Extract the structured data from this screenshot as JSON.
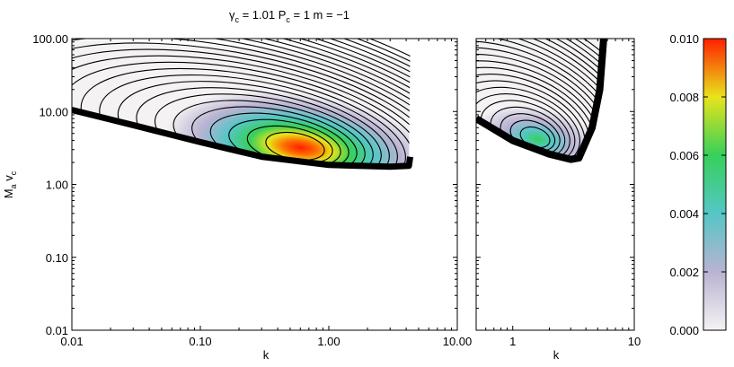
{
  "chart_data": [
    {
      "type": "heatmap",
      "title_parts": [
        {
          "sym": "γ",
          "sub": "c",
          "rest": " = 1.01"
        },
        {
          "sym": "P",
          "sub": "c",
          "rest": " = 1"
        },
        {
          "sym": "m",
          "sub": "",
          "rest": " = −1"
        }
      ],
      "xlabel": "k",
      "ylabel_main": "M",
      "ylabel_sub1": "a",
      "ylabel_mid": " v",
      "ylabel_sub2": "c",
      "xscale": "log",
      "yscale": "log",
      "xlim": [
        0.01,
        10
      ],
      "ylim": [
        0.01,
        100
      ],
      "xticks": [
        {
          "v": 0.01,
          "label": "0.01"
        },
        {
          "v": 0.1,
          "label": "0.10"
        },
        {
          "v": 1,
          "label": "1.00"
        },
        {
          "v": 10,
          "label": "10.00"
        }
      ],
      "yticks": [
        {
          "v": 0.01,
          "label": "0.01"
        },
        {
          "v": 0.1,
          "label": "0.10"
        },
        {
          "v": 1,
          "label": "1.00"
        },
        {
          "v": 10,
          "label": "10.00"
        },
        {
          "v": 100,
          "label": "100.00"
        }
      ],
      "peak": {
        "k": 0.6,
        "Mv": 3.2,
        "value": 0.01
      },
      "lower_boundary": [
        [
          0.01,
          10.5
        ],
        [
          0.03,
          6.5
        ],
        [
          0.1,
          3.8
        ],
        [
          0.3,
          2.4
        ],
        [
          1,
          1.85
        ],
        [
          3,
          1.75
        ],
        [
          4.2,
          1.8
        ]
      ],
      "right_cutoff_k": 4.3
    },
    {
      "type": "heatmap",
      "xlabel": "k",
      "xscale": "log",
      "yscale": "log",
      "xlim": [
        0.5,
        10
      ],
      "ylim": [
        0.01,
        100
      ],
      "xticks": [
        {
          "v": 1,
          "label": "1"
        },
        {
          "v": 10,
          "label": "10"
        }
      ],
      "peak": {
        "k": 1.6,
        "Mv": 4.2,
        "value": 0.0055
      },
      "lower_boundary": [
        [
          0.5,
          8
        ],
        [
          1,
          4
        ],
        [
          2,
          2.6
        ],
        [
          3,
          2.2
        ],
        [
          3.5,
          2.3
        ]
      ],
      "right_edge": [
        [
          3.5,
          2.3
        ],
        [
          4.5,
          6
        ],
        [
          5.2,
          20
        ],
        [
          5.6,
          100
        ]
      ]
    }
  ],
  "colorbar": {
    "range": [
      0,
      0.01
    ],
    "ticks": [
      "0.000",
      "0.002",
      "0.004",
      "0.006",
      "0.008",
      "0.010"
    ],
    "colors": [
      "#f4f2f3",
      "#b9b3d2",
      "#55c6c6",
      "#36d05a",
      "#e8e41a",
      "#ff1f00"
    ]
  }
}
